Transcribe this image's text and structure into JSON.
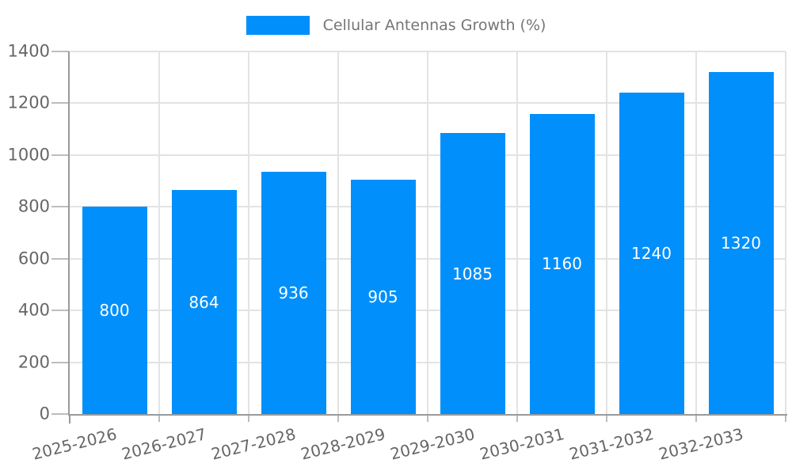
{
  "legend": {
    "label": "Cellular Antennas Growth (%)",
    "swatch_color": "#008FFB"
  },
  "chart_data": {
    "type": "bar",
    "title": "Cellular Antennas Growth (%)",
    "legend_entries": [
      "Cellular Antennas Growth (%)"
    ],
    "legend_position": "top",
    "categories": [
      "2025-2026",
      "2026-2027",
      "2027-2028",
      "2028-2029",
      "2029-2030",
      "2030-2031",
      "2031-2032",
      "2032-2033"
    ],
    "series": [
      {
        "name": "Cellular Antennas Growth (%)",
        "values": [
          800,
          864,
          936,
          905,
          1085,
          1160,
          1240,
          1320
        ]
      }
    ],
    "xlabel": "",
    "ylabel": "",
    "ylim": [
      0,
      1400
    ],
    "yticks": [
      0,
      200,
      400,
      600,
      800,
      1000,
      1200,
      1400
    ],
    "grid": true,
    "x_label_rotation_deg": -14,
    "bar_color": "#008FFB",
    "value_label_color": "#FFFFFF"
  },
  "colors": {
    "background": "#FFFFFF",
    "axis_line": "#9A9A9A",
    "gridline": "#E3E3E3",
    "tick_mark": "#BDBDBD",
    "tick_text": "#666666",
    "legend_text": "#757575"
  }
}
